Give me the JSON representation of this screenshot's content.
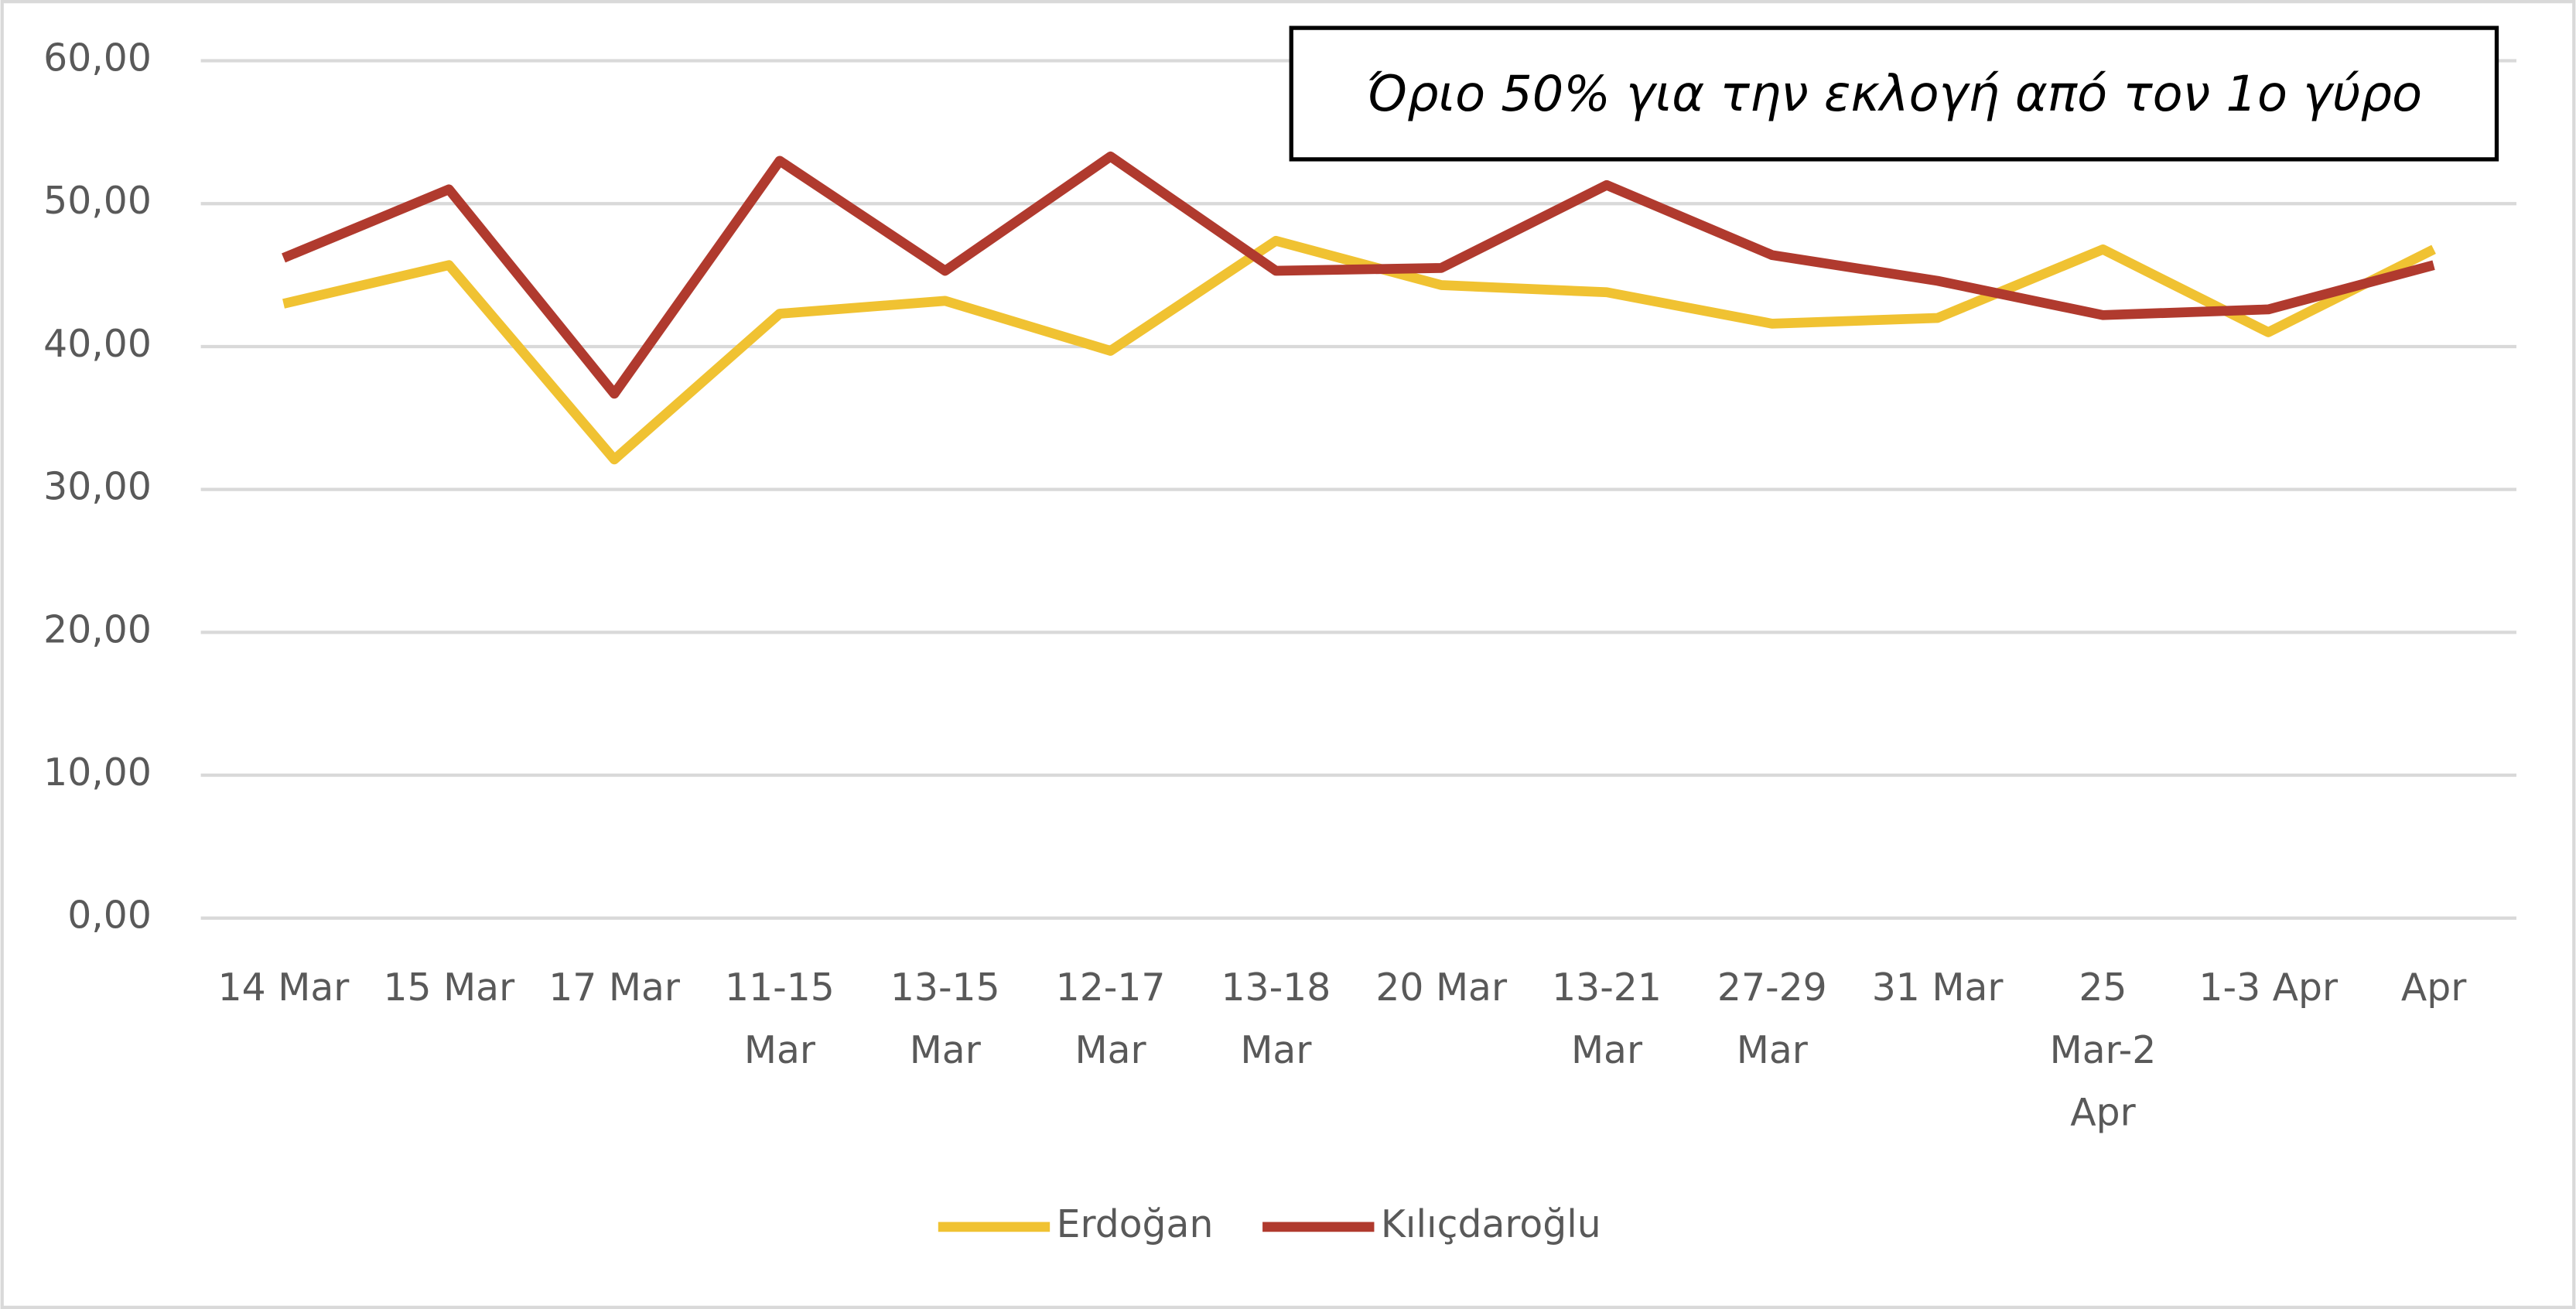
{
  "chart_data": {
    "type": "line",
    "annotation": "Όριο 50% για την εκλογή από τον 1ο γύρο",
    "categories": [
      "14 Mar",
      "15 Mar",
      "17 Mar",
      "11-15 Mar",
      "13-15 Mar",
      "12-17 Mar",
      "13-18 Mar",
      "20 Mar",
      "13-21 Mar",
      "27-29 Mar",
      "31 Mar",
      "25 Mar-2 Apr",
      "1-3 Apr",
      "Apr"
    ],
    "series": [
      {
        "name": "Erdoğan",
        "color": "#f0c232",
        "values": [
          43.0,
          45.7,
          32.1,
          42.3,
          43.2,
          39.7,
          47.4,
          44.3,
          43.8,
          41.6,
          42.0,
          46.8,
          41.0,
          46.8
        ]
      },
      {
        "name": "Kılıçdaroğlu",
        "color": "#b03a2e",
        "values": [
          46.2,
          51.0,
          36.7,
          53.0,
          45.3,
          53.3,
          45.3,
          45.5,
          51.3,
          46.4,
          44.6,
          42.2,
          42.6,
          45.7
        ]
      }
    ],
    "ylim": [
      0,
      60
    ],
    "yticks": [
      {
        "value": 0,
        "label": "0,00"
      },
      {
        "value": 10,
        "label": "10,00"
      },
      {
        "value": 20,
        "label": "20,00"
      },
      {
        "value": 30,
        "label": "30,00"
      },
      {
        "value": 40,
        "label": "40,00"
      },
      {
        "value": 50,
        "label": "50,00"
      },
      {
        "value": 60,
        "label": "60,00"
      }
    ],
    "grid": true,
    "legend": "bottom"
  }
}
